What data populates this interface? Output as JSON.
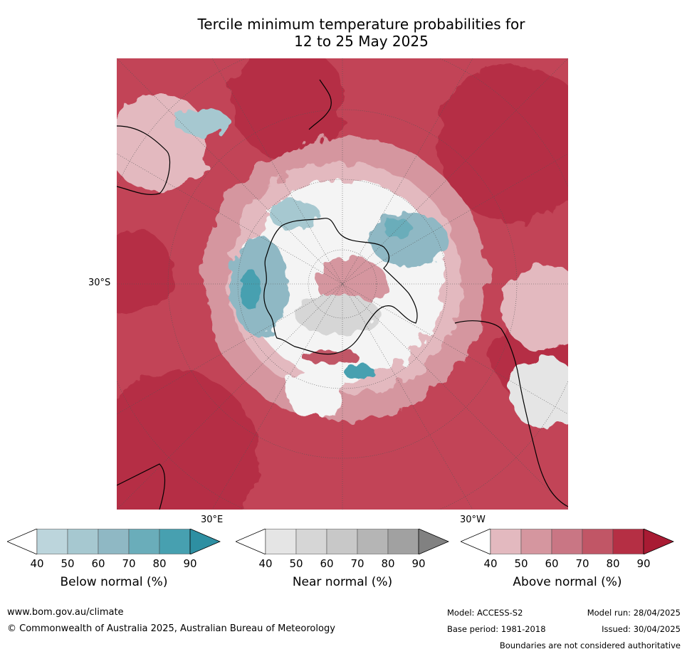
{
  "title": {
    "line1": "Tercile minimum temperature probabilities for",
    "line2": "12 to 25 May 2025"
  },
  "map_labels": {
    "lat": "30°S",
    "lon_east": "30°E",
    "lon_west": "30°W"
  },
  "colorbars": [
    {
      "name": "below",
      "title": "Below normal (%)",
      "ticks": [
        "40",
        "50",
        "60",
        "70",
        "80",
        "90"
      ],
      "colors": [
        "#ffffff",
        "#bcd5dc",
        "#a6c8d0",
        "#8fb8c4",
        "#6aadba",
        "#47a0b0",
        "#2e8fa2"
      ]
    },
    {
      "name": "near",
      "title": "Near normal (%)",
      "ticks": [
        "40",
        "50",
        "60",
        "70",
        "80",
        "90"
      ],
      "colors": [
        "#ffffff",
        "#e5e5e5",
        "#d6d6d6",
        "#c8c8c8",
        "#b5b5b5",
        "#a1a1a1",
        "#818181"
      ]
    },
    {
      "name": "above",
      "title": "Above normal (%)",
      "ticks": [
        "40",
        "50",
        "60",
        "70",
        "80",
        "90"
      ],
      "colors": [
        "#ffffff",
        "#e3b9bf",
        "#d5969f",
        "#c97684",
        "#c15666",
        "#b52f44",
        "#a81b33"
      ]
    }
  ],
  "footer": {
    "url": "www.bom.gov.au/climate",
    "copyright": "© Commonwealth of Australia 2025, Australian Bureau of Meteorology",
    "model": "Model: ACCESS-S2",
    "model_run": "Model run: 28/04/2025",
    "base_period": "Base period: 1981-2018",
    "issued": "Issued: 30/04/2025",
    "disclaimer": "Boundaries are not considered authoritative"
  }
}
